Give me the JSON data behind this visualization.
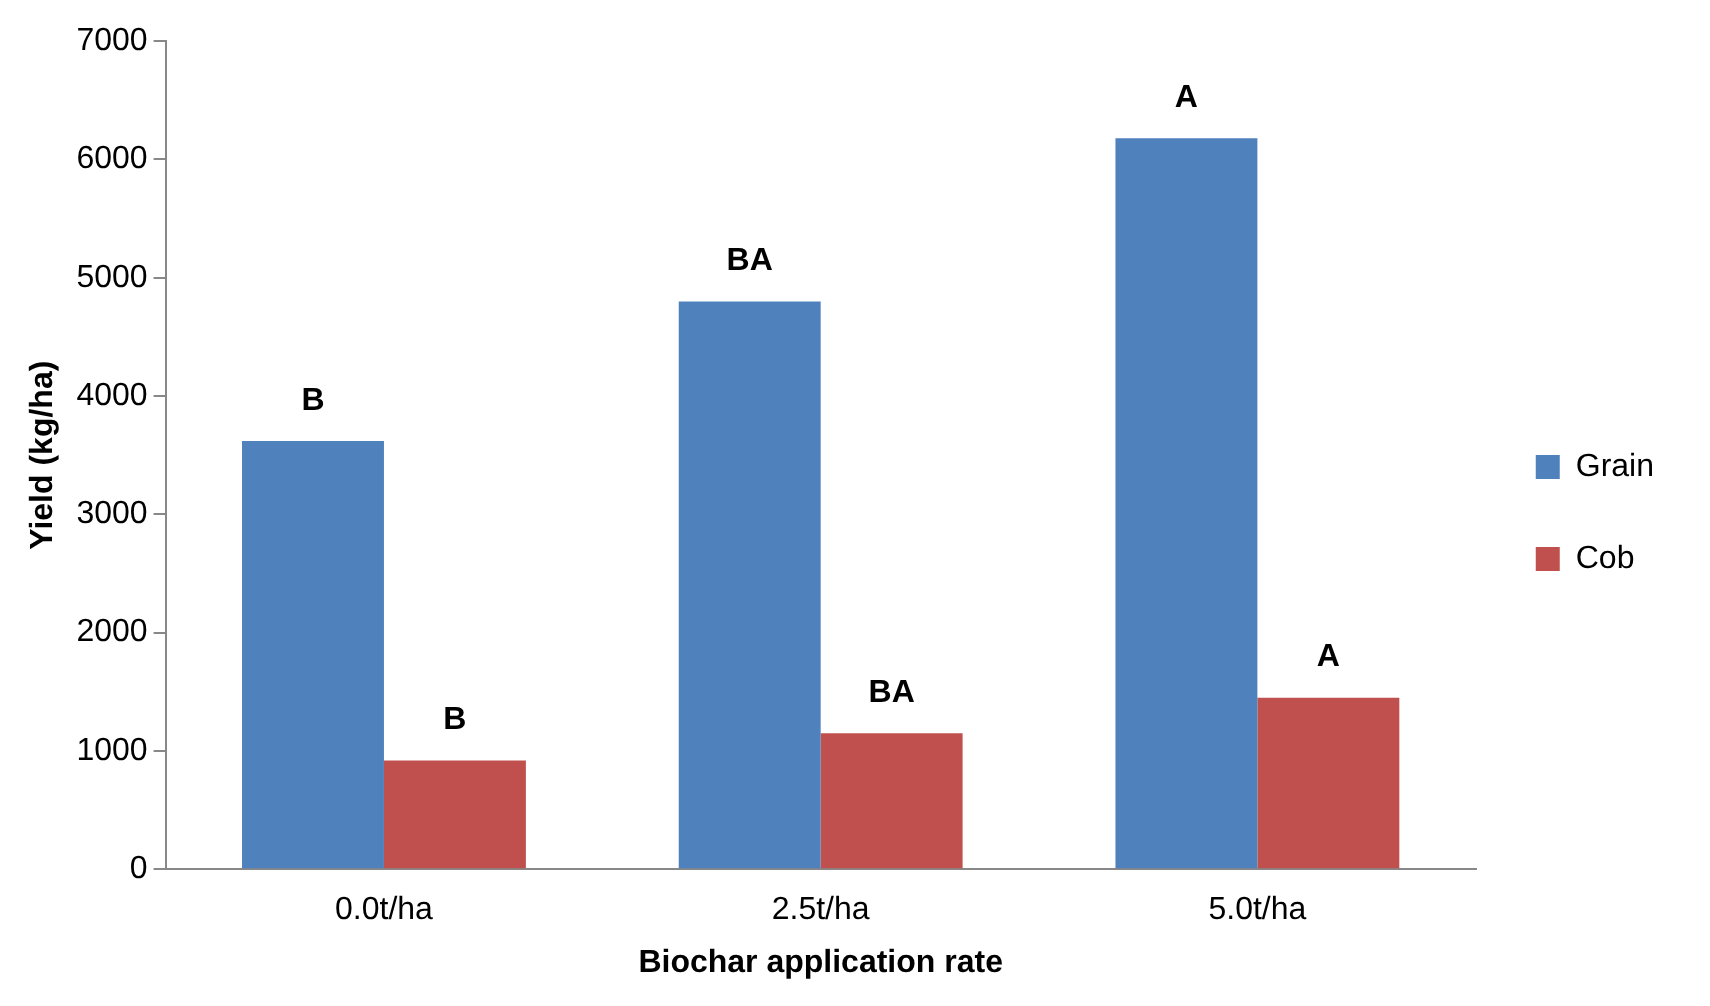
{
  "chart_data": {
    "type": "bar",
    "xlabel": "Biochar application rate",
    "ylabel": "Yield (kg/ha)",
    "categories": [
      "0.0t/ha",
      "2.5t/ha",
      "5.0t/ha"
    ],
    "series": [
      {
        "name": "Grain",
        "color": "#4f81bd",
        "values": [
          3620,
          4800,
          6180
        ]
      },
      {
        "name": "Cob",
        "color": "#c0504d",
        "values": [
          920,
          1150,
          1450
        ]
      }
    ],
    "ylim": [
      0,
      7000
    ],
    "yticks": [
      0,
      1000,
      2000,
      3000,
      4000,
      5000,
      6000,
      7000
    ],
    "grid": false,
    "legend": "right",
    "annotations": [
      {
        "text": "B",
        "x": "0.0t/ha",
        "y": 3620
      },
      {
        "text": "BA",
        "x": "2.5t/ha",
        "y": 4800
      },
      {
        "text": "A",
        "x": "5.0t/ha",
        "y": 6180
      },
      {
        "text": "B",
        "x": "0.0t/ha",
        "y": 920
      },
      {
        "text": "BA",
        "x": "2.5t/ha",
        "y": 1150
      },
      {
        "text": "A",
        "x": "5.0t/ha",
        "y": 1450
      }
    ]
  }
}
